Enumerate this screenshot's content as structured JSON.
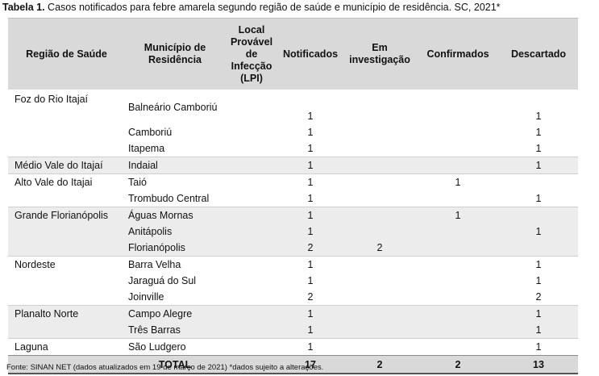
{
  "caption": {
    "label": "Tabela 1.",
    "text": " Casos notificados para febre amarela segundo região de saúde e município de residência. SC, 2021*"
  },
  "headers": {
    "region": "Região de Saúde",
    "municipality": "Município de Residência",
    "lpi": "Local Provável de Infecção (LPI)",
    "notified": "Notificados",
    "investigation": "Em investigação",
    "confirmed": "Confirmados",
    "discarded": "Descartado"
  },
  "rows": [
    {
      "region": "Foz do Rio Itajaí",
      "municipality": "Balneário Camboriú",
      "lpi": "1",
      "investigation": "",
      "confirmed": "",
      "discarded": "1"
    },
    {
      "region": "",
      "municipality": "Camboriú",
      "lpi": "1",
      "investigation": "",
      "confirmed": "",
      "discarded": "1"
    },
    {
      "region": "",
      "municipality": "Itapema",
      "lpi": "1",
      "investigation": "",
      "confirmed": "",
      "discarded": "1"
    },
    {
      "region": "Médio Vale do Itajaí",
      "municipality": "Indaial",
      "lpi": "1",
      "investigation": "",
      "confirmed": "",
      "discarded": "1"
    },
    {
      "region": "Alto Vale do Itajai",
      "municipality": "Taió",
      "lpi": "1",
      "investigation": "",
      "confirmed": "1",
      "discarded": ""
    },
    {
      "region": "",
      "municipality": "Trombudo Central",
      "lpi": "1",
      "investigation": "",
      "confirmed": "",
      "discarded": "1"
    },
    {
      "region": "Grande Florianópolis",
      "municipality": "Águas Mornas",
      "lpi": "1",
      "investigation": "",
      "confirmed": "1",
      "discarded": ""
    },
    {
      "region": "",
      "municipality": "Anitápolis",
      "lpi": "1",
      "investigation": "",
      "confirmed": "",
      "discarded": "1"
    },
    {
      "region": "",
      "municipality": "Florianópolis",
      "lpi": "2",
      "investigation": "2",
      "confirmed": "",
      "discarded": ""
    },
    {
      "region": "Nordeste",
      "municipality": "Barra Velha",
      "lpi": "1",
      "investigation": "",
      "confirmed": "",
      "discarded": "1"
    },
    {
      "region": "",
      "municipality": "Jaraguá do Sul",
      "lpi": "1",
      "investigation": "",
      "confirmed": "",
      "discarded": "1"
    },
    {
      "region": "",
      "municipality": "Joinville",
      "lpi": "2",
      "investigation": "",
      "confirmed": "",
      "discarded": "2"
    },
    {
      "region": "Planalto Norte",
      "municipality": "Campo Alegre",
      "lpi": "1",
      "investigation": "",
      "confirmed": "",
      "discarded": "1"
    },
    {
      "region": "",
      "municipality": "Três Barras",
      "lpi": "1",
      "investigation": "",
      "confirmed": "",
      "discarded": "1"
    },
    {
      "region": "Laguna",
      "municipality": "São Ludgero",
      "lpi": "1",
      "investigation": "",
      "confirmed": "",
      "discarded": "1"
    }
  ],
  "total": {
    "label": "TOTAL",
    "notified": "17",
    "investigation": "2",
    "confirmed": "2",
    "discarded": "13"
  },
  "footer": "Fonte: SINAN NET (dados atualizados em 19 de março  de 2021) *dados sujeito a alterações."
}
